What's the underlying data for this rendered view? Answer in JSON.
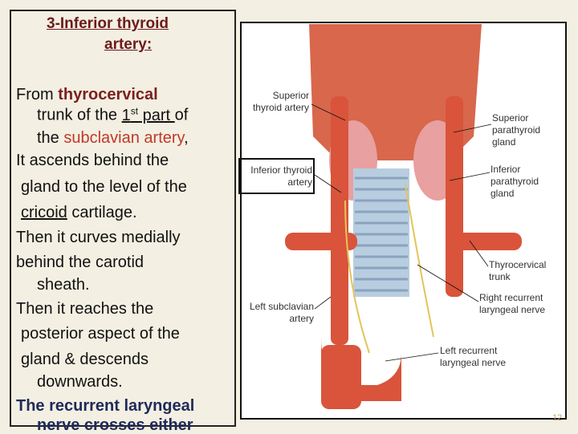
{
  "heading": [
    "3-Inferior thyroid",
    "artery:"
  ],
  "body": {
    "lines": [
      [
        "From ",
        "thyrocervical"
      ],
      [
        "trunk of the ",
        "1",
        "st",
        " part ",
        "of"
      ],
      [
        "the ",
        "subclavian artery",
        ","
      ],
      [
        "It ascends behind the"
      ],
      [
        "gland to the level of the"
      ],
      [
        "cricoid",
        " cartilage."
      ],
      [
        "Then it curves medially"
      ],
      [
        "behind the carotid"
      ],
      [
        "sheath."
      ],
      [
        "Then it reaches the"
      ],
      [
        "posterior aspect of the"
      ],
      [
        "gland & descends"
      ],
      [
        "downwards."
      ],
      [
        "The recurrent laryngeal"
      ],
      [
        "nerve crosses either"
      ]
    ]
  },
  "figure": {
    "labels": [
      {
        "lines": [
          "Superior",
          "thyroid artery"
        ]
      },
      {
        "lines": [
          "Superior",
          "parathyroid",
          "gland"
        ]
      },
      {
        "lines": [
          "Inferior thyroid",
          "artery"
        ]
      },
      {
        "lines": [
          "Inferior",
          "parathyroid",
          "gland"
        ]
      },
      {
        "lines": [
          "Thyrocervical",
          "trunk"
        ]
      },
      {
        "lines": [
          "Right recurrent",
          "laryngeal nerve"
        ]
      },
      {
        "lines": [
          "Left subclavian",
          "artery"
        ]
      },
      {
        "lines": [
          "Left recurrent",
          "laryngeal nerve"
        ]
      }
    ]
  },
  "page_number": "12"
}
